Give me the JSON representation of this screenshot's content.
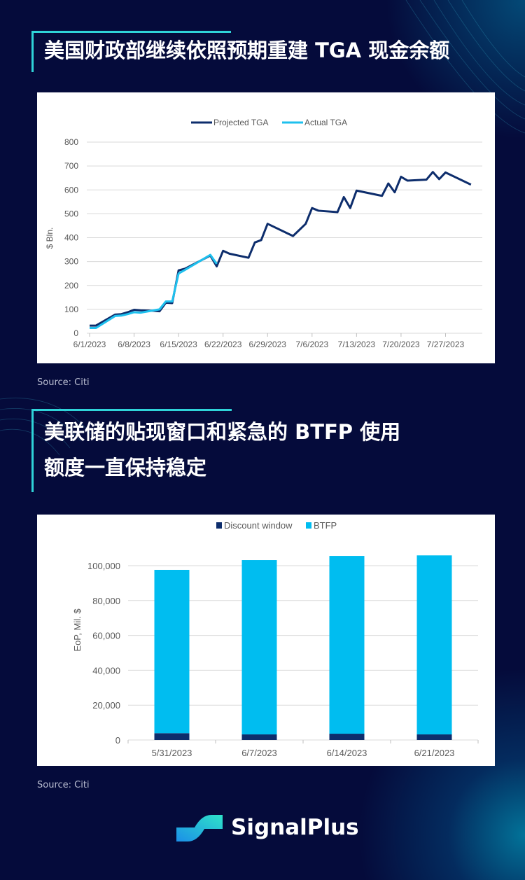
{
  "section1": {
    "title": "美国财政部继续依照预期重建 TGA 现金余额",
    "source": "Source: Citi"
  },
  "section2": {
    "title_line1": "美联储的贴现窗口和紧急的 BTFP 使用",
    "title_line2": "额度一直保持稳定",
    "source": "Source: Citi"
  },
  "brand": {
    "name": "SignalPlus",
    "colors": {
      "background": "#050b3b",
      "accent": "#2fd3d8"
    }
  },
  "chart_data": [
    {
      "type": "line",
      "ylabel": "$ Bln.",
      "xlabel": "",
      "ylim": [
        0,
        800
      ],
      "yticks": [
        "0",
        "100",
        "200",
        "300",
        "400",
        "500",
        "600",
        "700",
        "800"
      ],
      "xticks": [
        "6/1/2023",
        "6/8/2023",
        "6/15/2023",
        "6/22/2023",
        "6/29/2023",
        "7/6/2023",
        "7/13/2023",
        "7/20/2023",
        "7/27/2023"
      ],
      "grid": true,
      "legend": "top-center",
      "series": [
        {
          "name": "Projected TGA",
          "color": "#0d2d6c",
          "points": [
            [
              "6/1/2023",
              32
            ],
            [
              "6/2/2023",
              32
            ],
            [
              "6/5/2023",
              78
            ],
            [
              "6/6/2023",
              80
            ],
            [
              "6/7/2023",
              88
            ],
            [
              "6/8/2023",
              98
            ],
            [
              "6/9/2023",
              96
            ],
            [
              "6/11/2023",
              94
            ],
            [
              "6/12/2023",
              92
            ],
            [
              "6/13/2023",
              128
            ],
            [
              "6/14/2023",
              126
            ],
            [
              "6/15/2023",
              263
            ],
            [
              "6/16/2023",
              270
            ],
            [
              "6/20/2023",
              325
            ],
            [
              "6/21/2023",
              280
            ],
            [
              "6/22/2023",
              345
            ],
            [
              "6/23/2023",
              333
            ],
            [
              "6/26/2023",
              316
            ],
            [
              "6/27/2023",
              380
            ],
            [
              "6/28/2023",
              390
            ],
            [
              "6/29/2023",
              458
            ],
            [
              "7/3/2023",
              407
            ],
            [
              "7/5/2023",
              458
            ],
            [
              "7/6/2023",
              524
            ],
            [
              "7/7/2023",
              513
            ],
            [
              "7/10/2023",
              507
            ],
            [
              "7/11/2023",
              570
            ],
            [
              "7/12/2023",
              524
            ],
            [
              "7/13/2023",
              597
            ],
            [
              "7/17/2023",
              575
            ],
            [
              "7/18/2023",
              627
            ],
            [
              "7/19/2023",
              590
            ],
            [
              "7/20/2023",
              655
            ],
            [
              "7/21/2023",
              639
            ],
            [
              "7/24/2023",
              643
            ],
            [
              "7/25/2023",
              675
            ],
            [
              "7/26/2023",
              645
            ],
            [
              "7/27/2023",
              673
            ],
            [
              "7/31/2023",
              622
            ]
          ]
        },
        {
          "name": "Actual TGA",
          "color": "#1ec0ee",
          "points": [
            [
              "6/1/2023",
              22
            ],
            [
              "6/2/2023",
              22
            ],
            [
              "6/5/2023",
              72
            ],
            [
              "6/6/2023",
              74
            ],
            [
              "6/7/2023",
              80
            ],
            [
              "6/8/2023",
              88
            ],
            [
              "6/9/2023",
              86
            ],
            [
              "6/12/2023",
              100
            ],
            [
              "6/13/2023",
              133
            ],
            [
              "6/14/2023",
              133
            ],
            [
              "6/15/2023",
              250
            ],
            [
              "6/16/2023",
              265
            ],
            [
              "6/20/2023",
              328
            ],
            [
              "6/21/2023",
              290
            ]
          ]
        }
      ]
    },
    {
      "type": "bar",
      "stacked": true,
      "ylabel": "EoP, Mil. $",
      "xlabel": "",
      "ylim": [
        0,
        100000
      ],
      "yticks": [
        "0",
        "20,000",
        "40,000",
        "60,000",
        "80,000",
        "100,000"
      ],
      "grid": true,
      "legend": "top-center",
      "categories": [
        "5/31/2023",
        "6/7/2023",
        "6/14/2023",
        "6/21/2023"
      ],
      "series": [
        {
          "name": "Discount window",
          "color": "#0d2d6c",
          "values": [
            3900,
            3200,
            3600,
            3200
          ]
        },
        {
          "name": "BTFP",
          "color": "#00bdf0",
          "values": [
            93700,
            100000,
            102000,
            102700
          ]
        }
      ]
    }
  ]
}
